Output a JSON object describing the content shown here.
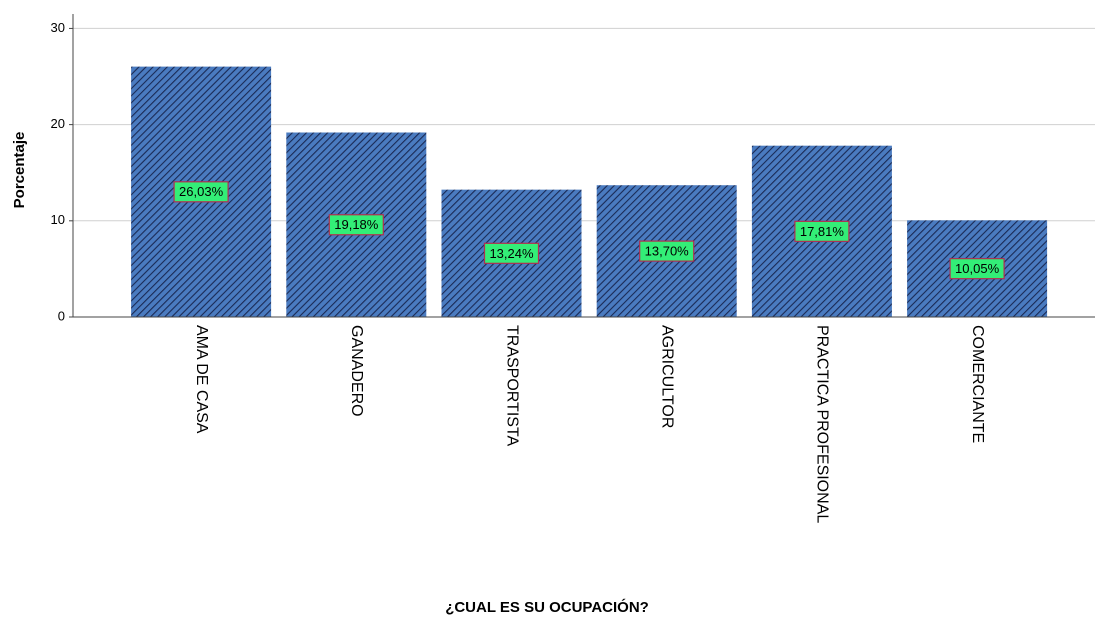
{
  "chart_data": {
    "type": "bar",
    "categories": [
      "AMA DE CASA",
      "GANADERO",
      "TRASPORTISTA",
      "AGRICULTOR",
      "PRACTICA PROFESIONAL",
      "COMERCIANTE"
    ],
    "values": [
      26.03,
      19.18,
      13.24,
      13.7,
      17.81,
      10.05
    ],
    "value_labels": [
      "26,03%",
      "19,18%",
      "13,24%",
      "13,70%",
      "17,81%",
      "10,05%"
    ],
    "color": "#4a7bc0",
    "x_label": "¿CUAL ES SU OCUPACIÓN?",
    "y_label": "Porcentaje",
    "ylim": [
      0,
      31.5
    ],
    "yticks": [
      0,
      10,
      20,
      30
    ],
    "grid": true
  }
}
